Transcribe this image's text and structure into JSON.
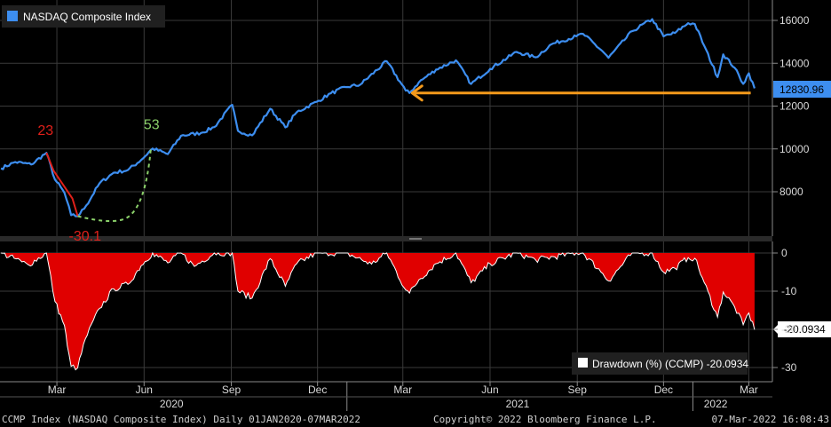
{
  "colors": {
    "background": "#000000",
    "index_line": "#3d8ef0",
    "drawdown_fill": "#e00000",
    "drawdown_edge": "#ffffff",
    "arrow": "#f59a1b",
    "annotation_red": "#e0201a",
    "annotation_green": "#8bd16a",
    "grid": "#3a3a3a",
    "price_box": "#3d8ef0"
  },
  "chart_data": [
    {
      "type": "line",
      "series": [
        {
          "name": "NASDAQ Composite Index",
          "points": [
            [
              "2020-01-02",
              9092
            ],
            [
              "2020-01-17",
              9388
            ],
            [
              "2020-02-03",
              9273
            ],
            [
              "2020-02-19",
              9817
            ],
            [
              "2020-02-28",
              8567
            ],
            [
              "2020-03-09",
              7950
            ],
            [
              "2020-03-16",
              6904
            ],
            [
              "2020-03-23",
              6860
            ],
            [
              "2020-04-01",
              7360
            ],
            [
              "2020-04-15",
              8393
            ],
            [
              "2020-04-30",
              8890
            ],
            [
              "2020-05-15",
              9015
            ],
            [
              "2020-05-29",
              9490
            ],
            [
              "2020-06-10",
              10020
            ],
            [
              "2020-06-26",
              9757
            ],
            [
              "2020-07-10",
              10617
            ],
            [
              "2020-07-31",
              10745
            ],
            [
              "2020-08-14",
              11019
            ],
            [
              "2020-09-02",
              12056
            ],
            [
              "2020-09-08",
              10847
            ],
            [
              "2020-09-23",
              10633
            ],
            [
              "2020-10-12",
              11876
            ],
            [
              "2020-10-28",
              11005
            ],
            [
              "2020-11-09",
              11713
            ],
            [
              "2020-11-30",
              12198
            ],
            [
              "2020-12-15",
              12595
            ],
            [
              "2020-12-31",
              12888
            ],
            [
              "2021-01-15",
              12998
            ],
            [
              "2021-02-12",
              14095
            ],
            [
              "2021-03-04",
              12723
            ],
            [
              "2021-03-08",
              12609
            ],
            [
              "2021-03-18",
              13116
            ],
            [
              "2021-04-05",
              13705
            ],
            [
              "2021-04-26",
              14138
            ],
            [
              "2021-05-12",
              13032
            ],
            [
              "2021-06-01",
              13736
            ],
            [
              "2021-06-29",
              14528
            ],
            [
              "2021-07-19",
              14275
            ],
            [
              "2021-08-05",
              14895
            ],
            [
              "2021-08-31",
              15259
            ],
            [
              "2021-09-07",
              15374
            ],
            [
              "2021-09-28",
              14546
            ],
            [
              "2021-10-04",
              14255
            ],
            [
              "2021-10-29",
              15498
            ],
            [
              "2021-11-19",
              16057
            ],
            [
              "2021-12-01",
              15254
            ],
            [
              "2021-12-13",
              15413
            ],
            [
              "2021-12-27",
              15871
            ],
            [
              "2022-01-03",
              15832
            ],
            [
              "2022-01-13",
              14806
            ],
            [
              "2022-01-27",
              13352
            ],
            [
              "2022-02-02",
              14417
            ],
            [
              "2022-02-14",
              13790
            ],
            [
              "2022-02-23",
              13037
            ],
            [
              "2022-03-01",
              13532
            ],
            [
              "2022-03-07",
              12830.96
            ]
          ]
        }
      ],
      "last_value_label": "12830.96",
      "ylim": [
        6000,
        17000
      ],
      "yticks": [
        "8000",
        "10000",
        "12000",
        "14000",
        "16000"
      ],
      "grid": true,
      "legend": "top-left",
      "annotations": [
        {
          "text": "23",
          "color": "red"
        },
        {
          "text": "53",
          "color": "green"
        },
        {
          "text": "-30.1",
          "color": "red"
        }
      ],
      "arrow": {
        "from": "2022-03-03",
        "to": "2021-03-08",
        "level": 12609
      }
    },
    {
      "type": "area",
      "series": [
        {
          "name": "Drawdown (%) (CCMP)",
          "points": [
            [
              "2020-01-02",
              0
            ],
            [
              "2020-01-24",
              -2.3
            ],
            [
              "2020-01-31",
              -3.1
            ],
            [
              "2020-02-19",
              0
            ],
            [
              "2020-02-28",
              -12.7
            ],
            [
              "2020-03-09",
              -19.0
            ],
            [
              "2020-03-12",
              -24.3
            ],
            [
              "2020-03-16",
              -29.7
            ],
            [
              "2020-03-23",
              -30.1
            ],
            [
              "2020-03-31",
              -22.5
            ],
            [
              "2020-04-15",
              -14.5
            ],
            [
              "2020-04-30",
              -9.4
            ],
            [
              "2020-05-15",
              -8.2
            ],
            [
              "2020-05-29",
              -3.3
            ],
            [
              "2020-06-10",
              0
            ],
            [
              "2020-06-26",
              -2.6
            ],
            [
              "2020-07-10",
              0
            ],
            [
              "2020-07-24",
              -3.5
            ],
            [
              "2020-08-14",
              0
            ],
            [
              "2020-09-02",
              0
            ],
            [
              "2020-09-08",
              -10.0
            ],
            [
              "2020-09-23",
              -11.8
            ],
            [
              "2020-10-12",
              -1.5
            ],
            [
              "2020-10-28",
              -8.7
            ],
            [
              "2020-11-09",
              -2.8
            ],
            [
              "2020-11-30",
              0
            ],
            [
              "2020-12-31",
              0
            ],
            [
              "2021-01-27",
              -2.9
            ],
            [
              "2021-02-12",
              0
            ],
            [
              "2021-03-04",
              -9.7
            ],
            [
              "2021-03-08",
              -10.5
            ],
            [
              "2021-03-18",
              -7.0
            ],
            [
              "2021-04-05",
              -2.8
            ],
            [
              "2021-04-26",
              0
            ],
            [
              "2021-05-12",
              -7.8
            ],
            [
              "2021-06-01",
              -2.8
            ],
            [
              "2021-06-29",
              0
            ],
            [
              "2021-07-19",
              -1.8
            ],
            [
              "2021-08-31",
              0
            ],
            [
              "2021-09-07",
              0
            ],
            [
              "2021-09-28",
              -5.4
            ],
            [
              "2021-10-04",
              -7.3
            ],
            [
              "2021-10-29",
              0
            ],
            [
              "2021-11-19",
              0
            ],
            [
              "2021-12-01",
              -5.0
            ],
            [
              "2021-12-13",
              -4.0
            ],
            [
              "2021-12-27",
              -1.2
            ],
            [
              "2022-01-03",
              -1.4
            ],
            [
              "2022-01-13",
              -7.8
            ],
            [
              "2022-01-27",
              -16.8
            ],
            [
              "2022-02-02",
              -10.2
            ],
            [
              "2022-02-14",
              -14.1
            ],
            [
              "2022-02-23",
              -18.8
            ],
            [
              "2022-03-01",
              -15.7
            ],
            [
              "2022-03-07",
              -20.0934
            ]
          ]
        }
      ],
      "legend": "bottom-right",
      "legend_label": "Drawdown (%) (CCMP) -20.0934",
      "last_value_label": "-20.0934",
      "ylim": [
        -32,
        2
      ],
      "yticks": [
        "0",
        "-10",
        "-20",
        "-30"
      ],
      "grid": true,
      "x_month_labels": [
        {
          "date": "2020-03-01",
          "label": "Mar"
        },
        {
          "date": "2020-06-01",
          "label": "Jun"
        },
        {
          "date": "2020-09-01",
          "label": "Sep"
        },
        {
          "date": "2020-12-01",
          "label": "Dec"
        },
        {
          "date": "2021-03-01",
          "label": "Mar"
        },
        {
          "date": "2021-06-01",
          "label": "Jun"
        },
        {
          "date": "2021-09-01",
          "label": "Sep"
        },
        {
          "date": "2021-12-01",
          "label": "Dec"
        },
        {
          "date": "2022-03-01",
          "label": "Mar"
        }
      ],
      "x_year_labels": [
        {
          "date": "2020-06-30",
          "label": "2020"
        },
        {
          "date": "2021-06-30",
          "label": "2021"
        },
        {
          "date": "2022-01-25",
          "label": "2022"
        }
      ],
      "x_range": [
        "2020-01-01",
        "2022-03-09"
      ]
    }
  ],
  "footer": {
    "left": "CCMP Index (NASDAQ Composite Index)  Daily 01JAN2020-07MAR2022",
    "center": "Copyright© 2022 Bloomberg Finance L.P.",
    "right": "07-Mar-2022 16:08:43"
  }
}
